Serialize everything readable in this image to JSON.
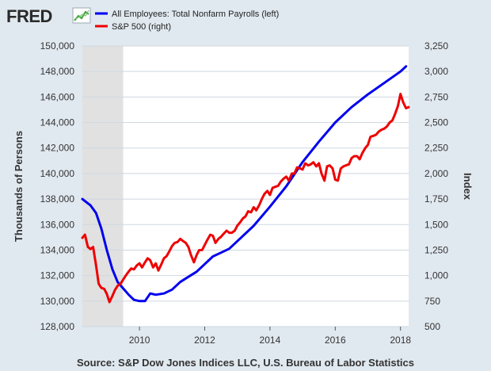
{
  "brand": {
    "logo": "FRED",
    "logo_icon": "fred-chart-icon"
  },
  "source": "Source: S&P Dow Jones Indices LLC, U.S. Bureau of Labor Statistics",
  "chart_data": {
    "type": "line",
    "title": "",
    "xlabel": "",
    "ylabel_left": "Thousands of Persons",
    "ylabel_right": "Index",
    "xlim": [
      2008.25,
      2018.25
    ],
    "ylim_left": [
      128000,
      150000
    ],
    "ylim_right": [
      500,
      3250
    ],
    "xticks": [
      2010,
      2012,
      2014,
      2016,
      2018
    ],
    "yticks_left": [
      128000,
      130000,
      132000,
      134000,
      136000,
      138000,
      140000,
      142000,
      144000,
      146000,
      148000,
      150000
    ],
    "yticks_right": [
      500,
      750,
      1000,
      1250,
      1500,
      1750,
      2000,
      2250,
      2500,
      2750,
      3000,
      3250
    ],
    "ytick_labels_left": [
      "128,000",
      "130,000",
      "132,000",
      "134,000",
      "136,000",
      "138,000",
      "140,000",
      "142,000",
      "144,000",
      "146,000",
      "148,000",
      "150,000"
    ],
    "ytick_labels_right": [
      "500",
      "750",
      "1,000",
      "1,250",
      "1,500",
      "1,750",
      "2,000",
      "2,250",
      "2,500",
      "2,750",
      "3,000",
      "3,250"
    ],
    "xtick_labels": [
      "2010",
      "2012",
      "2014",
      "2016",
      "2018"
    ],
    "grid": "horizontal",
    "legend_position": "top-left",
    "recession": [
      2008.25,
      2009.5
    ],
    "recession_color": "#e1e1e1",
    "series": [
      {
        "name": "All Employees: Total Nonfarm Payrolls (left)",
        "axis": "left",
        "color": "#0000ee",
        "x": [
          2008.25,
          2008.5,
          2008.67,
          2008.83,
          2009.0,
          2009.17,
          2009.33,
          2009.5,
          2009.67,
          2009.83,
          2010.0,
          2010.17,
          2010.33,
          2010.5,
          2010.75,
          2011.0,
          2011.25,
          2011.5,
          2011.75,
          2012.0,
          2012.25,
          2012.5,
          2012.75,
          2013.0,
          2013.5,
          2014.0,
          2014.5,
          2015.0,
          2015.5,
          2016.0,
          2016.5,
          2017.0,
          2017.5,
          2018.0,
          2018.17
        ],
        "y": [
          138000,
          137500,
          136900,
          135700,
          134000,
          132500,
          131500,
          131000,
          130500,
          130100,
          130000,
          130000,
          130600,
          130500,
          130600,
          130900,
          131500,
          131900,
          132300,
          132900,
          133500,
          133800,
          134100,
          134700,
          135900,
          137400,
          139000,
          140900,
          142500,
          144000,
          145200,
          146200,
          147100,
          148000,
          148400
        ]
      },
      {
        "name": "S&P 500 (right)",
        "axis": "right",
        "color": "#ee0000",
        "x": [
          2008.25,
          2008.33,
          2008.42,
          2008.5,
          2008.58,
          2008.67,
          2008.75,
          2008.83,
          2008.92,
          2009.0,
          2009.08,
          2009.17,
          2009.25,
          2009.33,
          2009.42,
          2009.5,
          2009.58,
          2009.67,
          2009.75,
          2009.83,
          2009.92,
          2010.0,
          2010.08,
          2010.17,
          2010.25,
          2010.33,
          2010.42,
          2010.5,
          2010.58,
          2010.67,
          2010.75,
          2010.83,
          2010.92,
          2011.0,
          2011.08,
          2011.17,
          2011.25,
          2011.33,
          2011.42,
          2011.5,
          2011.58,
          2011.67,
          2011.75,
          2011.83,
          2011.92,
          2012.0,
          2012.08,
          2012.17,
          2012.25,
          2012.33,
          2012.42,
          2012.5,
          2012.58,
          2012.67,
          2012.75,
          2012.83,
          2012.92,
          2013.0,
          2013.08,
          2013.17,
          2013.25,
          2013.33,
          2013.42,
          2013.5,
          2013.58,
          2013.67,
          2013.75,
          2013.83,
          2013.92,
          2014.0,
          2014.08,
          2014.17,
          2014.25,
          2014.33,
          2014.42,
          2014.5,
          2014.58,
          2014.67,
          2014.75,
          2014.83,
          2014.92,
          2015.0,
          2015.08,
          2015.17,
          2015.25,
          2015.33,
          2015.42,
          2015.5,
          2015.58,
          2015.67,
          2015.75,
          2015.83,
          2015.92,
          2016.0,
          2016.08,
          2016.17,
          2016.25,
          2016.33,
          2016.42,
          2016.5,
          2016.58,
          2016.67,
          2016.75,
          2016.83,
          2016.92,
          2017.0,
          2017.08,
          2017.17,
          2017.25,
          2017.33,
          2017.42,
          2017.5,
          2017.58,
          2017.67,
          2017.75,
          2017.83,
          2017.92,
          2018.0,
          2018.08,
          2018.17,
          2018.25
        ],
        "y": [
          1370,
          1400,
          1280,
          1260,
          1280,
          1100,
          920,
          880,
          870,
          820,
          740,
          800,
          860,
          900,
          920,
          960,
          1000,
          1040,
          1070,
          1060,
          1100,
          1120,
          1080,
          1130,
          1170,
          1150,
          1080,
          1120,
          1050,
          1110,
          1170,
          1190,
          1240,
          1290,
          1320,
          1330,
          1360,
          1340,
          1320,
          1280,
          1200,
          1130,
          1200,
          1250,
          1250,
          1300,
          1350,
          1400,
          1390,
          1320,
          1360,
          1380,
          1410,
          1440,
          1420,
          1420,
          1440,
          1490,
          1520,
          1560,
          1580,
          1630,
          1620,
          1670,
          1640,
          1690,
          1750,
          1800,
          1830,
          1790,
          1860,
          1870,
          1880,
          1920,
          1950,
          1970,
          1930,
          2000,
          2000,
          2060,
          2050,
          2040,
          2100,
          2080,
          2090,
          2110,
          2070,
          2100,
          2000,
          1930,
          2070,
          2080,
          2050,
          1940,
          1930,
          2050,
          2070,
          2080,
          2090,
          2150,
          2170,
          2170,
          2140,
          2200,
          2250,
          2280,
          2360,
          2370,
          2380,
          2410,
          2430,
          2440,
          2460,
          2500,
          2520,
          2580,
          2660,
          2780,
          2700,
          2640,
          2650
        ]
      }
    ]
  }
}
